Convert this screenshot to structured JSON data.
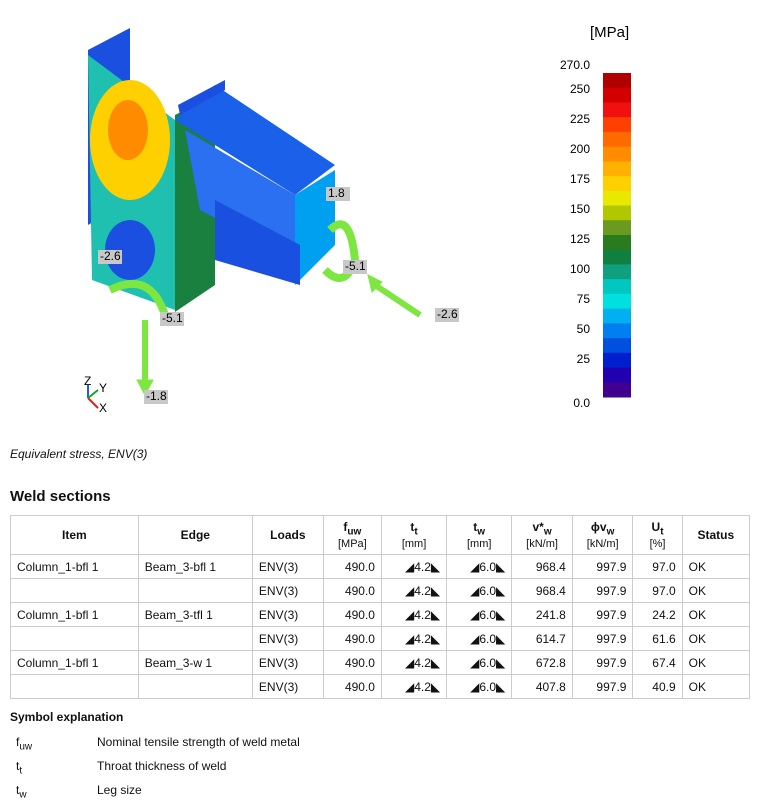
{
  "figure": {
    "labels": [
      "-2.6",
      "1.8",
      "-5.1",
      "-5.1",
      "-2.6",
      "-1.8"
    ],
    "axes": {
      "z": "Z",
      "y": "Y",
      "x": "X"
    },
    "caption": "Equivalent stress, ENV(3)"
  },
  "legend": {
    "unit": "[MPa]",
    "ticks": [
      "270.0",
      "250",
      "225",
      "200",
      "175",
      "150",
      "125",
      "100",
      "75",
      "50",
      "25",
      "0.0"
    ],
    "colors": [
      "#b00000",
      "#d40000",
      "#f01010",
      "#ff4000",
      "#ff6a00",
      "#ff8c00",
      "#ffb000",
      "#ffd000",
      "#e8e800",
      "#b0c800",
      "#6a9a20",
      "#2a7a20",
      "#108040",
      "#10a080",
      "#00c8c0",
      "#00e0e0",
      "#00b0f0",
      "#0080f0",
      "#0050e0",
      "#0020d0",
      "#2000b0",
      "#400090"
    ]
  },
  "table": {
    "title": "Weld sections",
    "header": [
      {
        "main": "Item"
      },
      {
        "main": "Edge"
      },
      {
        "main": "Loads"
      },
      {
        "main": "f",
        "sub": "uw",
        "unit": "[MPa]"
      },
      {
        "main": "t",
        "sub": "t",
        "unit": "[mm]"
      },
      {
        "main": "t",
        "sub": "w",
        "unit": "[mm]"
      },
      {
        "main": "v*",
        "sub": "w",
        "unit": "[kN/m]"
      },
      {
        "main": "ϕv",
        "sub": "w",
        "unit": "[kN/m]"
      },
      {
        "main": "U",
        "sub": "t",
        "unit": "[%]"
      },
      {
        "main": "Status"
      }
    ],
    "rows": [
      [
        "Column_1-bfl 1",
        "Beam_3-bfl 1",
        "ENV(3)",
        "490.0",
        "◢4.2◣",
        "◢6.0◣",
        "968.4",
        "997.9",
        "97.0",
        "OK"
      ],
      [
        "",
        "",
        "ENV(3)",
        "490.0",
        "◢4.2◣",
        "◢6.0◣",
        "968.4",
        "997.9",
        "97.0",
        "OK"
      ],
      [
        "Column_1-bfl 1",
        "Beam_3-tfl 1",
        "ENV(3)",
        "490.0",
        "◢4.2◣",
        "◢6.0◣",
        "241.8",
        "997.9",
        "24.2",
        "OK"
      ],
      [
        "",
        "",
        "ENV(3)",
        "490.0",
        "◢4.2◣",
        "◢6.0◣",
        "614.7",
        "997.9",
        "61.6",
        "OK"
      ],
      [
        "Column_1-bfl 1",
        "Beam_3-w 1",
        "ENV(3)",
        "490.0",
        "◢4.2◣",
        "◢6.0◣",
        "672.8",
        "997.9",
        "67.4",
        "OK"
      ],
      [
        "",
        "",
        "ENV(3)",
        "490.0",
        "◢4.2◣",
        "◢6.0◣",
        "407.8",
        "997.9",
        "40.9",
        "OK"
      ]
    ]
  },
  "symbols": {
    "title": "Symbol explanation",
    "items": [
      {
        "main": "f",
        "sub": "uw",
        "text": "Nominal tensile strength of weld metal"
      },
      {
        "main": "t",
        "sub": "t",
        "text": "Throat thickness of weld"
      },
      {
        "main": "t",
        "sub": "w",
        "text": "Leg size"
      }
    ]
  }
}
